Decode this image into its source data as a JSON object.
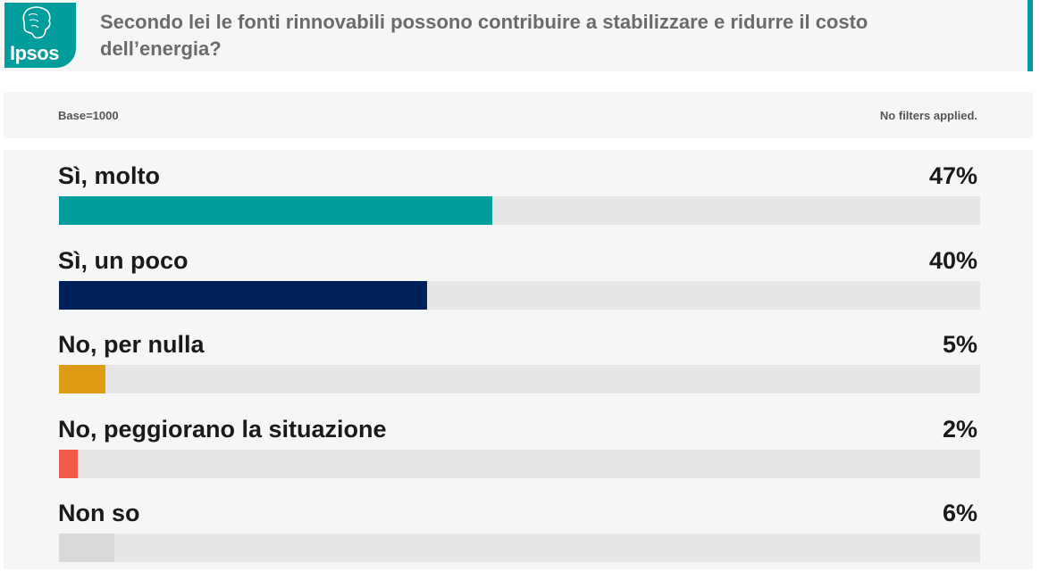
{
  "header": {
    "logo_text": "Ipsos",
    "question": "Secondo lei le fonti rinnovabili possono contribuire a stabilizzare e ridurre il costo dell’energia?"
  },
  "base": {
    "left": "Base=1000",
    "right": "No filters applied."
  },
  "chart_data": {
    "type": "bar",
    "title": "Secondo lei le fonti rinnovabili possono contribuire a stabilizzare e ridurre il costo dell’energia?",
    "orientation": "horizontal",
    "categories": [
      "Sì, molto",
      "Sì, un poco",
      "No, per nulla",
      "No, peggiorano la situazione",
      "Non so"
    ],
    "values": [
      47,
      40,
      5,
      2,
      6
    ],
    "value_labels": [
      "47%",
      "40%",
      "5%",
      "2%",
      "6%"
    ],
    "colors": [
      "#009d9c",
      "#00205b",
      "#e09b16",
      "#f05a4a",
      "#d9d9d9"
    ],
    "xlim": [
      0,
      100
    ],
    "grid": false
  }
}
